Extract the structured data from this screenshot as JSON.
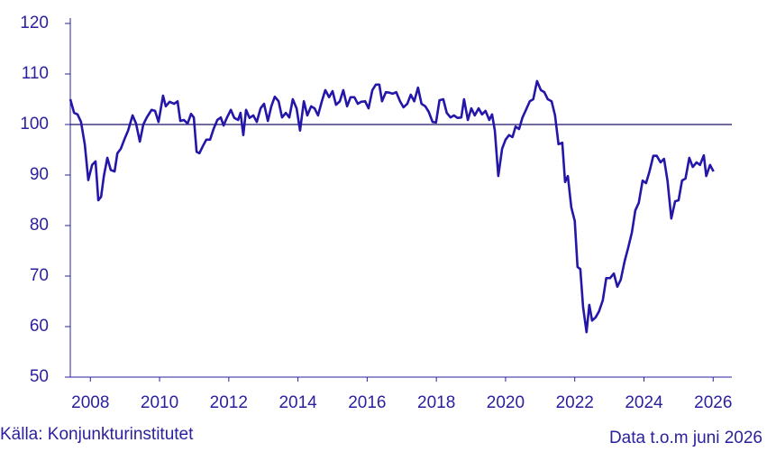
{
  "chart_data": {
    "type": "line",
    "source": "Källa: Konjunkturinstitutet",
    "note": "Data t.o.m juni 2026",
    "color": "#2416a8",
    "reference_line": 100,
    "xlim": [
      2007.92,
      2027.04
    ],
    "xticks": [
      {
        "value": 2008.5,
        "label": "2008"
      },
      {
        "value": 2010.5,
        "label": "2010"
      },
      {
        "value": 2012.5,
        "label": "2012"
      },
      {
        "value": 2014.5,
        "label": "2014"
      },
      {
        "value": 2016.5,
        "label": "2016"
      },
      {
        "value": 2018.5,
        "label": "2018"
      },
      {
        "value": 2020.5,
        "label": "2020"
      },
      {
        "value": 2022.5,
        "label": "2022"
      },
      {
        "value": 2024.5,
        "label": "2024"
      },
      {
        "value": 2026.5,
        "label": "2026"
      }
    ],
    "ylim": [
      50,
      120
    ],
    "yticks": [
      50,
      60,
      70,
      80,
      90,
      100,
      110,
      120
    ],
    "x": [
      2007.92,
      2008.03,
      2008.13,
      2008.23,
      2008.34,
      2008.44,
      2008.55,
      2008.65,
      2008.73,
      2008.81,
      2008.89,
      2008.99,
      2009.09,
      2009.2,
      2009.28,
      2009.38,
      2009.48,
      2009.59,
      2009.72,
      2009.82,
      2009.93,
      2010.03,
      2010.13,
      2010.27,
      2010.37,
      2010.47,
      2010.6,
      2010.68,
      2010.79,
      2010.92,
      2011.02,
      2011.1,
      2011.2,
      2011.31,
      2011.41,
      2011.49,
      2011.57,
      2011.65,
      2011.75,
      2011.85,
      2011.96,
      2012.06,
      2012.17,
      2012.27,
      2012.35,
      2012.45,
      2012.56,
      2012.66,
      2012.77,
      2012.84,
      2012.92,
      2013.0,
      2013.1,
      2013.21,
      2013.31,
      2013.42,
      2013.52,
      2013.63,
      2013.73,
      2013.83,
      2013.94,
      2014.04,
      2014.15,
      2014.25,
      2014.35,
      2014.46,
      2014.56,
      2014.67,
      2014.77,
      2014.88,
      2014.98,
      2015.08,
      2015.19,
      2015.29,
      2015.4,
      2015.5,
      2015.6,
      2015.71,
      2015.81,
      2015.92,
      2016.02,
      2016.13,
      2016.23,
      2016.33,
      2016.44,
      2016.54,
      2016.65,
      2016.75,
      2016.85,
      2016.93,
      2017.04,
      2017.14,
      2017.24,
      2017.34,
      2017.45,
      2017.55,
      2017.66,
      2017.76,
      2017.86,
      2017.97,
      2018.07,
      2018.18,
      2018.28,
      2018.39,
      2018.49,
      2018.59,
      2018.7,
      2018.8,
      2018.91,
      2019.01,
      2019.11,
      2019.22,
      2019.3,
      2019.41,
      2019.51,
      2019.61,
      2019.72,
      2019.82,
      2019.92,
      2020.03,
      2020.11,
      2020.19,
      2020.29,
      2020.4,
      2020.5,
      2020.6,
      2020.7,
      2020.79,
      2020.89,
      2020.99,
      2021.09,
      2021.2,
      2021.3,
      2021.41,
      2021.52,
      2021.62,
      2021.72,
      2021.83,
      2021.93,
      2022.03,
      2022.14,
      2022.22,
      2022.3,
      2022.4,
      2022.5,
      2022.58,
      2022.66,
      2022.74,
      2022.84,
      2022.92,
      2023.0,
      2023.1,
      2023.2,
      2023.31,
      2023.41,
      2023.52,
      2023.63,
      2023.73,
      2023.83,
      2023.94,
      2024.04,
      2024.15,
      2024.25,
      2024.35,
      2024.46,
      2024.56,
      2024.66,
      2024.77,
      2024.87,
      2024.98,
      2025.08,
      2025.18,
      2025.29,
      2025.4,
      2025.5,
      2025.6,
      2025.7,
      2025.81,
      2025.91,
      2026.02,
      2026.12,
      2026.23,
      2026.3,
      2026.41,
      2026.51
    ],
    "values": [
      105,
      102.3,
      102,
      100.5,
      96,
      89,
      92,
      92.7,
      85,
      85.7,
      89.8,
      93.4,
      91,
      90.7,
      94.3,
      95.2,
      97,
      98.8,
      101.8,
      100.2,
      96.6,
      100,
      101.4,
      102.9,
      102.7,
      100.5,
      105.7,
      103.6,
      104.5,
      104.1,
      104.6,
      100.7,
      100.9,
      100.2,
      102.1,
      101.4,
      94.6,
      94.3,
      95.7,
      97,
      97,
      99.1,
      100.9,
      101.4,
      99.8,
      101.4,
      102.9,
      101.3,
      100.9,
      102.3,
      97.9,
      102.9,
      101.3,
      101.8,
      100.5,
      103.2,
      104.1,
      100.7,
      103.6,
      105.5,
      104.6,
      101.4,
      102.3,
      101.4,
      105,
      103.2,
      98.8,
      104.6,
      101.8,
      103.6,
      103.2,
      101.8,
      104.6,
      106.8,
      105.4,
      106.6,
      103.9,
      104.6,
      106.8,
      103.6,
      105.4,
      105.4,
      104.1,
      104.5,
      104.6,
      103.2,
      106.8,
      107.9,
      107.9,
      104.6,
      106.4,
      106.3,
      106.1,
      106.4,
      104.6,
      103.4,
      104.1,
      105.9,
      104.6,
      107.3,
      104.1,
      103.6,
      102.5,
      100.5,
      100.4,
      104.8,
      105,
      102.3,
      101.4,
      101.8,
      101.3,
      101.4,
      105,
      100.9,
      103.2,
      101.8,
      103.2,
      102,
      102.7,
      100.9,
      102,
      98.8,
      89.8,
      95.2,
      97,
      97.9,
      97.5,
      99.6,
      99.1,
      101.4,
      102.9,
      104.6,
      105,
      108.6,
      106.8,
      106.4,
      105,
      104.6,
      101.8,
      96.1,
      96.4,
      88.6,
      89.8,
      83.6,
      80.9,
      71.8,
      71.4,
      63.9,
      58.9,
      64.3,
      61.2,
      61.8,
      63,
      65.2,
      69.6,
      69.6,
      70.5,
      67.9,
      69.3,
      72.9,
      75.5,
      78.6,
      83,
      84.5,
      88.9,
      88.4,
      90.7,
      93.8,
      93.8,
      92.5,
      93.2,
      88.9,
      81.4,
      84.8,
      85,
      88.9,
      89.3,
      93.4,
      91.6,
      92.5,
      92,
      93.9,
      89.8,
      92,
      90.7
    ]
  }
}
